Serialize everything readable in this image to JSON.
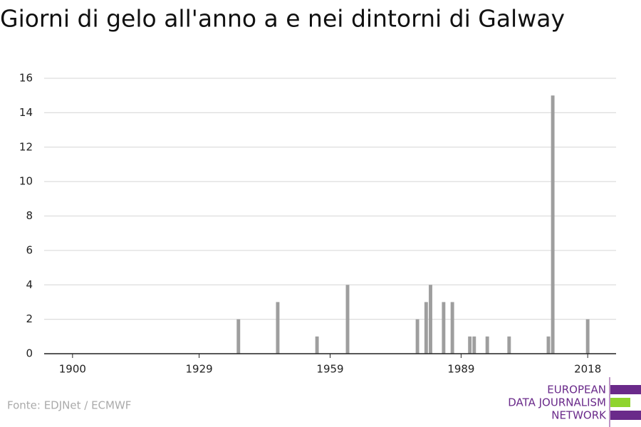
{
  "chart_data": {
    "type": "bar",
    "title": "Giorni di gelo all'anno a e nei dintorni di Galway",
    "x": [
      1938,
      1947,
      1956,
      1963,
      1979,
      1981,
      1982,
      1985,
      1987,
      1991,
      1992,
      1995,
      2000,
      2009,
      2010,
      2018
    ],
    "values": [
      2,
      3,
      1,
      4,
      2,
      3,
      4,
      3,
      3,
      1,
      1,
      1,
      1,
      1,
      15,
      2
    ],
    "color": "#9e9e9e",
    "xlim": [
      1893.5,
      2024.5
    ],
    "xticks": [
      1900,
      1929,
      1959,
      1989,
      2018
    ],
    "ylim": [
      0,
      16
    ],
    "yticks": [
      0,
      2,
      4,
      6,
      8,
      10,
      12,
      14,
      16
    ],
    "grid": true,
    "source": "Fonte: EDJNet / ECMWF"
  },
  "logo": {
    "lines": [
      "EUROPEAN",
      "DATA JOURNALISM",
      "NETWORK"
    ]
  }
}
